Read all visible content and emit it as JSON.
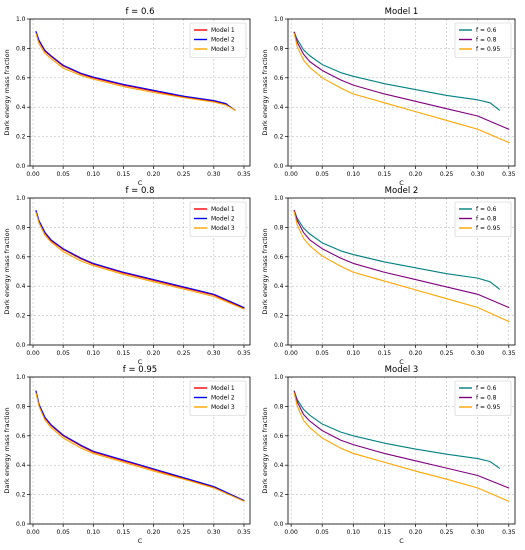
{
  "chart_data": [
    {
      "type": "line",
      "title": "f = 0.6",
      "xlabel": "C",
      "ylabel": "Dark energy mass fraction",
      "xlim": [
        -0.005,
        0.36
      ],
      "ylim": [
        0.0,
        1.0
      ],
      "xticks": [
        "0.00",
        "0.05",
        "0.10",
        "0.15",
        "0.20",
        "0.25",
        "0.30",
        "0.35"
      ],
      "yticks": [
        "0.0",
        "0.2",
        "0.4",
        "0.6",
        "0.8",
        "1.0"
      ],
      "grid": true,
      "legend": "top-right",
      "series": [
        {
          "name": "Model 1",
          "color": "#ff0000",
          "x": [
            0.005,
            0.01,
            0.02,
            0.03,
            0.05,
            0.08,
            0.1,
            0.15,
            0.2,
            0.25,
            0.3,
            0.32,
            0.335
          ],
          "y": [
            0.91,
            0.85,
            0.78,
            0.745,
            0.68,
            0.625,
            0.6,
            0.55,
            0.51,
            0.47,
            0.44,
            0.42,
            0.38
          ]
        },
        {
          "name": "Model 2",
          "color": "#0000ff",
          "x": [
            0.005,
            0.01,
            0.02,
            0.03,
            0.05,
            0.08,
            0.1,
            0.15,
            0.2,
            0.25,
            0.3,
            0.32,
            0.335
          ],
          "y": [
            0.915,
            0.855,
            0.785,
            0.75,
            0.685,
            0.63,
            0.605,
            0.555,
            0.515,
            0.475,
            0.445,
            0.425,
            0.38
          ]
        },
        {
          "name": "Model 3",
          "color": "#ffa500",
          "x": [
            0.005,
            0.01,
            0.02,
            0.03,
            0.05,
            0.08,
            0.1,
            0.15,
            0.2,
            0.25,
            0.3,
            0.32,
            0.335
          ],
          "y": [
            0.9,
            0.83,
            0.765,
            0.73,
            0.665,
            0.615,
            0.59,
            0.54,
            0.5,
            0.465,
            0.435,
            0.415,
            0.38
          ]
        }
      ]
    },
    {
      "type": "line",
      "title": "Model 1",
      "xlabel": "C",
      "ylabel": "Dark energy mass fraction",
      "xlim": [
        -0.005,
        0.36
      ],
      "ylim": [
        0.0,
        1.0
      ],
      "xticks": [
        "0.00",
        "0.05",
        "0.10",
        "0.15",
        "0.20",
        "0.25",
        "0.30",
        "0.35"
      ],
      "yticks": [
        "0.0",
        "0.2",
        "0.4",
        "0.6",
        "0.8",
        "1.0"
      ],
      "grid": true,
      "legend": "top-right",
      "series": [
        {
          "name": "f = 0.6",
          "color": "#008080",
          "x": [
            0.005,
            0.01,
            0.02,
            0.03,
            0.05,
            0.08,
            0.1,
            0.15,
            0.2,
            0.25,
            0.3,
            0.32,
            0.335
          ],
          "y": [
            0.91,
            0.86,
            0.79,
            0.75,
            0.69,
            0.635,
            0.61,
            0.56,
            0.52,
            0.48,
            0.45,
            0.43,
            0.38
          ]
        },
        {
          "name": "f = 0.8",
          "color": "#800080",
          "x": [
            0.005,
            0.01,
            0.02,
            0.03,
            0.05,
            0.08,
            0.1,
            0.15,
            0.2,
            0.25,
            0.3,
            0.35
          ],
          "y": [
            0.91,
            0.84,
            0.76,
            0.71,
            0.65,
            0.585,
            0.55,
            0.49,
            0.44,
            0.39,
            0.34,
            0.25
          ]
        },
        {
          "name": "f = 0.95",
          "color": "#ffa500",
          "x": [
            0.005,
            0.01,
            0.02,
            0.03,
            0.05,
            0.08,
            0.1,
            0.15,
            0.2,
            0.25,
            0.3,
            0.35
          ],
          "y": [
            0.9,
            0.81,
            0.72,
            0.67,
            0.6,
            0.53,
            0.49,
            0.43,
            0.37,
            0.31,
            0.25,
            0.16
          ]
        }
      ]
    },
    {
      "type": "line",
      "title": "f = 0.8",
      "xlabel": "C",
      "ylabel": "Dark energy mass fraction",
      "xlim": [
        -0.005,
        0.36
      ],
      "ylim": [
        0.0,
        1.0
      ],
      "xticks": [
        "0.00",
        "0.05",
        "0.10",
        "0.15",
        "0.20",
        "0.25",
        "0.30",
        "0.35"
      ],
      "yticks": [
        "0.0",
        "0.2",
        "0.4",
        "0.6",
        "0.8",
        "1.0"
      ],
      "grid": true,
      "legend": "top-right",
      "series": [
        {
          "name": "Model 1",
          "color": "#ff0000",
          "x": [
            0.005,
            0.01,
            0.02,
            0.03,
            0.05,
            0.08,
            0.1,
            0.15,
            0.2,
            0.25,
            0.3,
            0.35
          ],
          "y": [
            0.91,
            0.84,
            0.76,
            0.71,
            0.65,
            0.585,
            0.55,
            0.49,
            0.44,
            0.39,
            0.34,
            0.25
          ]
        },
        {
          "name": "Model 2",
          "color": "#0000ff",
          "x": [
            0.005,
            0.01,
            0.02,
            0.03,
            0.05,
            0.08,
            0.1,
            0.15,
            0.2,
            0.25,
            0.3,
            0.35
          ],
          "y": [
            0.915,
            0.845,
            0.765,
            0.715,
            0.655,
            0.59,
            0.555,
            0.495,
            0.445,
            0.395,
            0.345,
            0.255
          ]
        },
        {
          "name": "Model 3",
          "color": "#ffa500",
          "x": [
            0.005,
            0.01,
            0.02,
            0.03,
            0.05,
            0.08,
            0.1,
            0.15,
            0.2,
            0.25,
            0.3,
            0.35
          ],
          "y": [
            0.9,
            0.83,
            0.745,
            0.7,
            0.635,
            0.57,
            0.54,
            0.48,
            0.43,
            0.38,
            0.33,
            0.245
          ]
        }
      ]
    },
    {
      "type": "line",
      "title": "Model 2",
      "xlabel": "C",
      "ylabel": "Dark energy mass fraction",
      "xlim": [
        -0.005,
        0.36
      ],
      "ylim": [
        0.0,
        1.0
      ],
      "xticks": [
        "0.00",
        "0.05",
        "0.10",
        "0.15",
        "0.20",
        "0.25",
        "0.30",
        "0.35"
      ],
      "yticks": [
        "0.0",
        "0.2",
        "0.4",
        "0.6",
        "0.8",
        "1.0"
      ],
      "grid": true,
      "legend": "top-right",
      "series": [
        {
          "name": "f = 0.6",
          "color": "#008080",
          "x": [
            0.005,
            0.01,
            0.02,
            0.03,
            0.05,
            0.08,
            0.1,
            0.15,
            0.2,
            0.25,
            0.3,
            0.32,
            0.335
          ],
          "y": [
            0.915,
            0.86,
            0.795,
            0.755,
            0.695,
            0.64,
            0.615,
            0.565,
            0.525,
            0.485,
            0.455,
            0.43,
            0.38
          ]
        },
        {
          "name": "f = 0.8",
          "color": "#800080",
          "x": [
            0.005,
            0.01,
            0.02,
            0.03,
            0.05,
            0.08,
            0.1,
            0.15,
            0.2,
            0.25,
            0.3,
            0.35
          ],
          "y": [
            0.915,
            0.845,
            0.765,
            0.715,
            0.655,
            0.59,
            0.555,
            0.495,
            0.445,
            0.395,
            0.345,
            0.255
          ]
        },
        {
          "name": "f = 0.95",
          "color": "#ffa500",
          "x": [
            0.005,
            0.01,
            0.02,
            0.03,
            0.05,
            0.08,
            0.1,
            0.15,
            0.2,
            0.25,
            0.3,
            0.35
          ],
          "y": [
            0.905,
            0.815,
            0.725,
            0.675,
            0.605,
            0.535,
            0.495,
            0.435,
            0.375,
            0.315,
            0.255,
            0.16
          ]
        }
      ]
    },
    {
      "type": "line",
      "title": "f = 0.95",
      "xlabel": "C",
      "ylabel": "Dark energy mass fraction",
      "xlim": [
        -0.005,
        0.36
      ],
      "ylim": [
        0.0,
        1.0
      ],
      "xticks": [
        "0.00",
        "0.05",
        "0.10",
        "0.15",
        "0.20",
        "0.25",
        "0.30",
        "0.35"
      ],
      "yticks": [
        "0.0",
        "0.2",
        "0.4",
        "0.6",
        "0.8",
        "1.0"
      ],
      "grid": true,
      "legend": "top-right",
      "series": [
        {
          "name": "Model 1",
          "color": "#ff0000",
          "x": [
            0.005,
            0.01,
            0.02,
            0.03,
            0.05,
            0.08,
            0.1,
            0.15,
            0.2,
            0.25,
            0.3,
            0.35
          ],
          "y": [
            0.9,
            0.81,
            0.72,
            0.67,
            0.6,
            0.53,
            0.49,
            0.43,
            0.37,
            0.31,
            0.25,
            0.16
          ]
        },
        {
          "name": "Model 2",
          "color": "#0000ff",
          "x": [
            0.005,
            0.01,
            0.02,
            0.03,
            0.05,
            0.08,
            0.1,
            0.15,
            0.2,
            0.25,
            0.3,
            0.35
          ],
          "y": [
            0.905,
            0.815,
            0.725,
            0.675,
            0.605,
            0.535,
            0.495,
            0.435,
            0.375,
            0.315,
            0.255,
            0.16
          ]
        },
        {
          "name": "Model 3",
          "color": "#ffa500",
          "x": [
            0.005,
            0.01,
            0.02,
            0.03,
            0.05,
            0.08,
            0.1,
            0.15,
            0.2,
            0.25,
            0.3,
            0.35
          ],
          "y": [
            0.89,
            0.8,
            0.705,
            0.655,
            0.585,
            0.515,
            0.48,
            0.42,
            0.36,
            0.305,
            0.245,
            0.155
          ]
        }
      ]
    },
    {
      "type": "line",
      "title": "Model 3",
      "xlabel": "C",
      "ylabel": "Dark energy mass fraction",
      "xlim": [
        -0.005,
        0.36
      ],
      "ylim": [
        0.0,
        1.0
      ],
      "xticks": [
        "0.00",
        "0.05",
        "0.10",
        "0.15",
        "0.20",
        "0.25",
        "0.30",
        "0.35"
      ],
      "yticks": [
        "0.0",
        "0.2",
        "0.4",
        "0.6",
        "0.8",
        "1.0"
      ],
      "grid": true,
      "legend": "top-right",
      "series": [
        {
          "name": "f = 0.6",
          "color": "#008080",
          "x": [
            0.005,
            0.01,
            0.02,
            0.03,
            0.05,
            0.08,
            0.1,
            0.15,
            0.2,
            0.25,
            0.3,
            0.32,
            0.335
          ],
          "y": [
            0.905,
            0.845,
            0.78,
            0.74,
            0.68,
            0.625,
            0.6,
            0.55,
            0.51,
            0.475,
            0.445,
            0.425,
            0.38
          ]
        },
        {
          "name": "f = 0.8",
          "color": "#800080",
          "x": [
            0.005,
            0.01,
            0.02,
            0.03,
            0.05,
            0.08,
            0.1,
            0.15,
            0.2,
            0.25,
            0.3,
            0.35
          ],
          "y": [
            0.9,
            0.83,
            0.745,
            0.7,
            0.635,
            0.57,
            0.54,
            0.48,
            0.43,
            0.38,
            0.33,
            0.245
          ]
        },
        {
          "name": "f = 0.95",
          "color": "#ffa500",
          "x": [
            0.005,
            0.01,
            0.02,
            0.03,
            0.05,
            0.08,
            0.1,
            0.15,
            0.2,
            0.25,
            0.3,
            0.35
          ],
          "y": [
            0.89,
            0.8,
            0.705,
            0.655,
            0.585,
            0.515,
            0.48,
            0.42,
            0.36,
            0.305,
            0.245,
            0.155
          ]
        }
      ]
    }
  ]
}
